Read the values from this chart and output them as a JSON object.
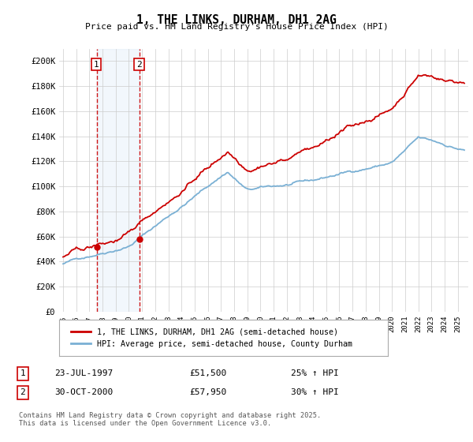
{
  "title": "1, THE LINKS, DURHAM, DH1 2AG",
  "subtitle": "Price paid vs. HM Land Registry's House Price Index (HPI)",
  "ylabel_ticks": [
    "£0",
    "£20K",
    "£40K",
    "£60K",
    "£80K",
    "£100K",
    "£120K",
    "£140K",
    "£160K",
    "£180K",
    "£200K"
  ],
  "ytick_values": [
    0,
    20000,
    40000,
    60000,
    80000,
    100000,
    120000,
    140000,
    160000,
    180000,
    200000
  ],
  "ylim": [
    0,
    210000
  ],
  "xlim_start": 1994.7,
  "xlim_end": 2025.8,
  "sale1_date": 1997.55,
  "sale1_price": 51500,
  "sale1_label": "1",
  "sale1_date_str": "23-JUL-1997",
  "sale1_price_str": "£51,500",
  "sale1_hpi_str": "25% ↑ HPI",
  "sale2_date": 2000.83,
  "sale2_price": 57950,
  "sale2_label": "2",
  "sale2_date_str": "30-OCT-2000",
  "sale2_price_str": "£57,950",
  "sale2_hpi_str": "30% ↑ HPI",
  "property_line_color": "#cc0000",
  "hpi_line_color": "#7ab0d4",
  "background_color": "#ffffff",
  "grid_color": "#cccccc",
  "legend_label_property": "1, THE LINKS, DURHAM, DH1 2AG (semi-detached house)",
  "legend_label_hpi": "HPI: Average price, semi-detached house, County Durham",
  "footer_text": "Contains HM Land Registry data © Crown copyright and database right 2025.\nThis data is licensed under the Open Government Licence v3.0."
}
